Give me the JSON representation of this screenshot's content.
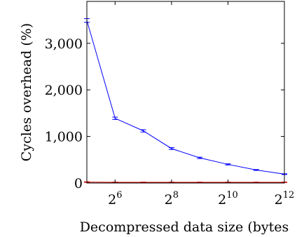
{
  "chart_data": {
    "type": "line",
    "xlabel": "Decompressed data size (bytes",
    "ylabel": "Cycles overhead (%)",
    "x_scale": "log2",
    "xlim": [
      32,
      4096
    ],
    "ylim": [
      0,
      3900
    ],
    "x_ticks": [
      {
        "value": 64,
        "base": "2",
        "exp": "6"
      },
      {
        "value": 256,
        "base": "2",
        "exp": "8"
      },
      {
        "value": 1024,
        "base": "2",
        "exp": "10"
      },
      {
        "value": 4096,
        "base": "2",
        "exp": "12"
      }
    ],
    "y_ticks": [
      {
        "value": 0,
        "label": "0"
      },
      {
        "value": 1000,
        "label": "1,000"
      },
      {
        "value": 2000,
        "label": "2,000"
      },
      {
        "value": 3000,
        "label": "3,000"
      }
    ],
    "grid": false,
    "error_bars": true,
    "series": [
      {
        "color": "#0000ff",
        "x": [
          32,
          64,
          128,
          256,
          512,
          1024,
          2048,
          4096
        ],
        "y": [
          3490,
          1390,
          1120,
          740,
          540,
          400,
          280,
          190
        ],
        "err": [
          40,
          25,
          25,
          20,
          15,
          12,
          10,
          8
        ]
      },
      {
        "color": "#cc0000",
        "x": [
          32,
          64,
          128,
          256,
          512,
          1024,
          2048,
          4096
        ],
        "y": [
          20,
          15,
          15,
          15,
          15,
          15,
          15,
          15
        ],
        "err": [
          8,
          5,
          5,
          5,
          5,
          5,
          5,
          5
        ]
      }
    ]
  }
}
